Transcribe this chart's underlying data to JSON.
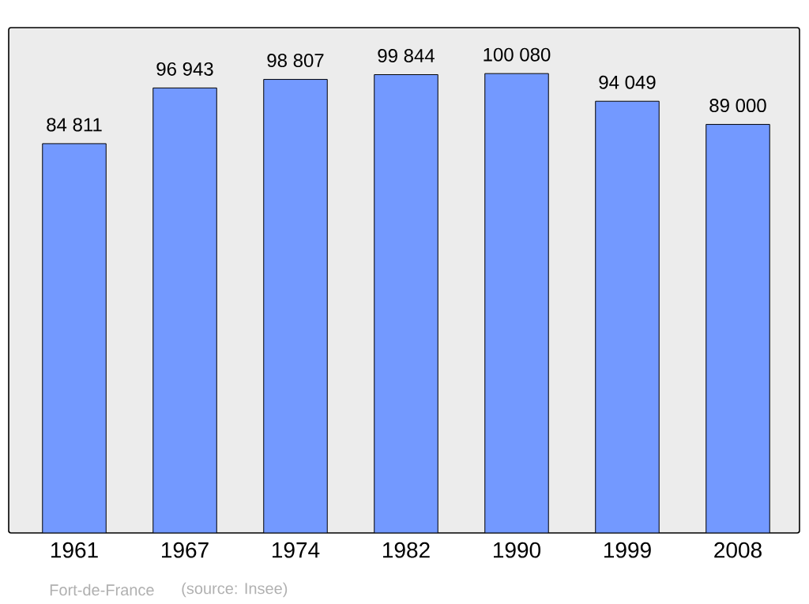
{
  "chart_data": {
    "type": "bar",
    "categories": [
      "1961",
      "1967",
      "1974",
      "1982",
      "1990",
      "1999",
      "2008"
    ],
    "values": [
      84811,
      96943,
      98807,
      99844,
      100080,
      94049,
      89000
    ],
    "value_labels": [
      "84 811",
      "96 943",
      "98 807",
      "99 844",
      "100 080",
      "94 049",
      "89 000"
    ],
    "color": "#7399ff",
    "annotations": [
      "Fort-de-France",
      "(source: Insee)"
    ]
  }
}
